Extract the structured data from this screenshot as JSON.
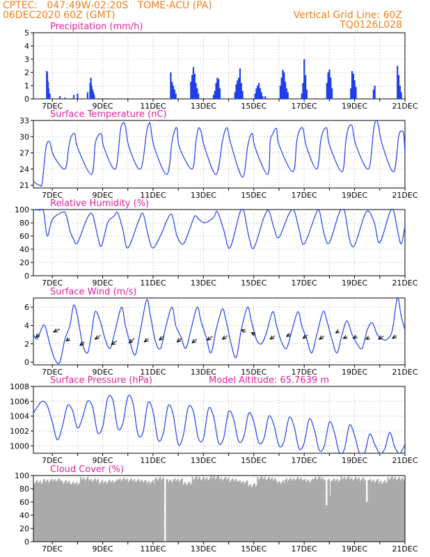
{
  "header": {
    "line1": "CPTEC:   047:49W-02:20S   TOME-ACU (PA)",
    "line2": "06DEC2020 60Z (GMT)",
    "right1": "Vertical Grid Line: 60Z",
    "right2": "TQ0126L028"
  },
  "colors": {
    "header": "#f07f1c",
    "title": "#e0219a",
    "series": "#1f3fe8",
    "cloud": "#aaaaaa",
    "arrow": "#000000"
  },
  "chart_data": [
    {
      "type": "bar",
      "title": "Precipitation (mm/h)",
      "ylim": [
        0,
        5
      ],
      "yticks": [
        "0",
        "1",
        "2",
        "3",
        "4",
        "5"
      ],
      "xticks": [
        "7DEC",
        "9DEC",
        "11DEC",
        "13DEC",
        "15DEC",
        "17DEC",
        "19DEC",
        "21DEC"
      ],
      "xrange_days": [
        6.25,
        21.0
      ],
      "x": [
        6.78,
        6.8,
        6.83,
        6.85,
        6.9,
        7.3,
        7.5,
        7.85,
        8.0,
        8.4,
        8.5,
        8.53,
        8.56,
        8.6,
        8.63,
        8.66,
        11.7,
        11.75,
        11.8,
        11.85,
        11.9,
        12.5,
        12.55,
        12.6,
        12.65,
        12.7,
        12.75,
        12.8,
        13.4,
        13.45,
        13.5,
        13.55,
        13.6,
        13.65,
        14.25,
        14.3,
        14.35,
        14.4,
        14.45,
        14.5,
        14.55,
        15.05,
        15.1,
        15.15,
        15.2,
        15.25,
        15.3,
        15.35,
        15.45,
        16.05,
        16.1,
        16.15,
        16.2,
        16.25,
        16.3,
        16.35,
        16.9,
        16.95,
        17.0,
        17.05,
        17.1,
        17.9,
        17.95,
        18.0,
        18.05,
        18.1,
        18.85,
        18.9,
        18.95,
        19.0,
        19.05,
        19.75,
        19.8,
        20.7,
        20.75,
        20.8,
        20.85
      ],
      "values": [
        2.1,
        2.0,
        1.3,
        0.8,
        0.4,
        0.2,
        0.1,
        0.3,
        0.4,
        0.5,
        1.2,
        1.6,
        1.0,
        0.7,
        0.5,
        0.3,
        2.0,
        1.3,
        1.0,
        0.7,
        0.4,
        1.3,
        1.8,
        2.4,
        1.9,
        1.2,
        0.8,
        0.4,
        0.3,
        0.6,
        1.2,
        1.6,
        1.5,
        0.8,
        0.5,
        1.1,
        1.4,
        1.6,
        2.3,
        1.2,
        0.6,
        0.4,
        0.8,
        1.0,
        1.2,
        0.8,
        0.5,
        0.2,
        0.2,
        1.0,
        1.6,
        2.2,
        2.0,
        1.3,
        0.8,
        0.5,
        0.4,
        1.2,
        3.0,
        1.8,
        0.7,
        1.2,
        2.0,
        2.2,
        1.6,
        0.8,
        0.8,
        2.1,
        1.9,
        1.4,
        0.9,
        0.7,
        1.0,
        2.5,
        1.8,
        1.0,
        0.5
      ]
    },
    {
      "type": "line",
      "title": "Surface Temperature (nC)",
      "ylim": [
        20.5,
        33
      ],
      "yticks": [
        "21",
        "24",
        "27",
        "30",
        "33"
      ],
      "xticks": [
        "7DEC",
        "9DEC",
        "11DEC",
        "13DEC",
        "15DEC",
        "17DEC",
        "19DEC",
        "21DEC"
      ],
      "x": [
        6.25,
        6.5,
        6.6,
        6.75,
        6.9,
        7.05,
        7.5,
        7.65,
        7.75,
        7.9,
        8.0,
        8.55,
        8.7,
        8.8,
        8.95,
        9.05,
        9.5,
        9.7,
        9.8,
        9.9,
        10.05,
        10.5,
        10.75,
        10.85,
        10.9,
        11.05,
        11.55,
        11.75,
        11.85,
        11.95,
        12.05,
        12.55,
        12.7,
        12.8,
        12.9,
        13.05,
        13.5,
        13.75,
        13.85,
        13.95,
        14.1,
        14.55,
        14.75,
        14.85,
        14.95,
        15.05,
        15.55,
        15.65,
        15.75,
        15.9,
        16.0,
        16.55,
        16.7,
        16.8,
        16.95,
        17.1,
        17.5,
        17.65,
        17.75,
        17.9,
        18.0,
        18.5,
        18.65,
        18.75,
        18.9,
        19.05,
        19.55,
        19.75,
        19.85,
        19.95,
        20.1,
        20.55,
        20.75,
        20.85,
        20.95,
        21.0
      ],
      "values": [
        21.7,
        21.0,
        21.5,
        28.0,
        29.0,
        26.5,
        24.0,
        28.0,
        30.0,
        30.5,
        28.0,
        23.0,
        28.5,
        30.0,
        30.5,
        28.0,
        24.0,
        31.0,
        32.5,
        32.0,
        28.0,
        24.0,
        31.0,
        32.5,
        32.0,
        28.0,
        23.0,
        29.0,
        31.0,
        31.5,
        28.0,
        24.0,
        29.0,
        31.5,
        31.0,
        28.0,
        23.0,
        29.0,
        31.0,
        31.5,
        28.5,
        22.5,
        28.0,
        30.0,
        30.5,
        28.0,
        23.0,
        29.0,
        30.5,
        31.5,
        28.5,
        23.5,
        29.0,
        31.0,
        31.5,
        28.0,
        24.0,
        29.0,
        31.0,
        31.5,
        28.5,
        23.5,
        29.0,
        31.5,
        32.0,
        28.5,
        24.0,
        31.0,
        33.0,
        32.0,
        28.5,
        23.5,
        30.0,
        31.0,
        30.5,
        27.0
      ]
    },
    {
      "type": "line",
      "title": "Relative Humidity (%)",
      "ylim": [
        0,
        100
      ],
      "yticks": [
        "0",
        "20",
        "40",
        "60",
        "80",
        "100"
      ],
      "xticks": [
        "7DEC",
        "9DEC",
        "11DEC",
        "13DEC",
        "15DEC",
        "17DEC",
        "19DEC",
        "21DEC"
      ],
      "x": [
        6.25,
        6.5,
        6.65,
        6.8,
        7.0,
        7.4,
        7.55,
        7.7,
        7.85,
        8.0,
        8.4,
        8.6,
        8.8,
        8.95,
        9.2,
        9.45,
        9.6,
        9.8,
        10.0,
        10.4,
        10.6,
        10.8,
        11.0,
        11.35,
        11.55,
        11.75,
        11.95,
        12.2,
        12.45,
        12.65,
        12.8,
        13.05,
        13.4,
        13.55,
        13.8,
        14.05,
        14.45,
        14.6,
        14.8,
        15.0,
        15.4,
        15.6,
        15.8,
        16.0,
        16.4,
        16.6,
        16.8,
        17.0,
        17.45,
        17.6,
        17.8,
        18.0,
        18.4,
        18.6,
        18.8,
        19.0,
        19.4,
        19.6,
        19.8,
        20.0,
        20.4,
        20.55,
        20.7,
        20.85,
        21.0
      ],
      "values": [
        100,
        99,
        98,
        60,
        85,
        96,
        92,
        68,
        55,
        50,
        88,
        92,
        60,
        45,
        80,
        90,
        95,
        70,
        42,
        80,
        94,
        62,
        42,
        65,
        84,
        92,
        60,
        48,
        70,
        90,
        86,
        80,
        88,
        97,
        70,
        42,
        96,
        98,
        60,
        42,
        88,
        98,
        72,
        58,
        94,
        98,
        70,
        48,
        92,
        98,
        62,
        50,
        96,
        98,
        55,
        46,
        92,
        96,
        78,
        50,
        96,
        98,
        70,
        48,
        75
      ]
    },
    {
      "type": "line",
      "title": "Surface Wind (m/s)",
      "ylim": [
        -0.3,
        7
      ],
      "yticks": [
        "0",
        "2",
        "4",
        "6"
      ],
      "xticks": [
        "7DEC",
        "9DEC",
        "11DEC",
        "13DEC",
        "15DEC",
        "17DEC",
        "19DEC",
        "21DEC"
      ],
      "x": [
        6.25,
        6.4,
        6.55,
        6.7,
        6.9,
        7.1,
        7.3,
        7.5,
        7.7,
        7.85,
        8.0,
        8.2,
        8.4,
        8.55,
        8.7,
        8.9,
        9.1,
        9.3,
        9.5,
        9.75,
        9.9,
        10.1,
        10.3,
        10.5,
        10.75,
        10.9,
        11.1,
        11.3,
        11.5,
        11.75,
        11.9,
        12.1,
        12.3,
        12.5,
        12.75,
        12.9,
        13.1,
        13.3,
        13.5,
        13.75,
        13.9,
        14.1,
        14.3,
        14.5,
        14.75,
        14.9,
        15.1,
        15.3,
        15.5,
        15.75,
        15.9,
        16.1,
        16.3,
        16.5,
        16.75,
        16.9,
        17.1,
        17.3,
        17.5,
        17.75,
        17.9,
        18.1,
        18.3,
        18.5,
        18.7,
        18.9,
        19.1,
        19.3,
        19.5,
        19.7,
        19.9,
        20.1,
        20.3,
        20.5,
        20.7,
        20.85,
        21.0
      ],
      "values": [
        3.0,
        2.5,
        3.5,
        4.0,
        2.0,
        0.3,
        0.0,
        2.5,
        4.0,
        6.2,
        5.0,
        2.0,
        1.0,
        3.0,
        5.5,
        4.5,
        2.5,
        1.5,
        3.5,
        6.0,
        4.0,
        2.0,
        0.8,
        3.5,
        6.8,
        5.0,
        2.2,
        1.5,
        3.8,
        6.0,
        4.0,
        2.8,
        1.5,
        3.5,
        6.0,
        4.5,
        2.8,
        1.0,
        3.5,
        5.8,
        4.5,
        2.0,
        0.5,
        3.5,
        6.0,
        4.5,
        2.5,
        2.0,
        3.2,
        5.5,
        4.0,
        2.2,
        1.5,
        3.3,
        5.5,
        4.0,
        2.5,
        1.0,
        3.0,
        5.5,
        4.5,
        2.5,
        1.0,
        3.0,
        4.5,
        3.0,
        2.0,
        1.5,
        3.5,
        4.3,
        3.0,
        2.5,
        2.5,
        3.5,
        7.0,
        5.0,
        3.5
      ],
      "arrows": [
        {
          "x": 6.35,
          "y": 2.7,
          "dx": 0.35,
          "dy": 1.0
        },
        {
          "x": 7.05,
          "y": 3.3,
          "dx": 0.7,
          "dy": 0.9
        },
        {
          "x": 7.55,
          "y": 2.3,
          "dx": 0.4,
          "dy": 0.8
        },
        {
          "x": 8.1,
          "y": 1.8,
          "dx": 0.5,
          "dy": 1.2
        },
        {
          "x": 8.7,
          "y": 2.5,
          "dx": 0.6,
          "dy": 1.2
        },
        {
          "x": 9.35,
          "y": 1.9,
          "dx": 0.6,
          "dy": 1.2
        },
        {
          "x": 10.05,
          "y": 2.1,
          "dx": 0.6,
          "dy": 1.4
        },
        {
          "x": 10.65,
          "y": 2.2,
          "dx": 0.5,
          "dy": 1.1
        },
        {
          "x": 11.25,
          "y": 2.4,
          "dx": 0.55,
          "dy": 1.3
        },
        {
          "x": 11.95,
          "y": 2.2,
          "dx": 0.5,
          "dy": 1.1
        },
        {
          "x": 12.55,
          "y": 2.1,
          "dx": 0.55,
          "dy": 1.2
        },
        {
          "x": 13.15,
          "y": 2.4,
          "dx": 0.6,
          "dy": 1.2
        },
        {
          "x": 13.75,
          "y": 2.5,
          "dx": 0.6,
          "dy": 1.1
        },
        {
          "x": 14.5,
          "y": 3.5,
          "dx": 0.55,
          "dy": -0.5
        },
        {
          "x": 14.9,
          "y": 3.2,
          "dx": 0.5,
          "dy": -0.6
        },
        {
          "x": 15.65,
          "y": 2.5,
          "dx": 0.55,
          "dy": 1.1
        },
        {
          "x": 16.3,
          "y": 2.8,
          "dx": 0.5,
          "dy": 0.8
        },
        {
          "x": 16.95,
          "y": 2.6,
          "dx": 0.55,
          "dy": 1.0
        },
        {
          "x": 17.6,
          "y": 2.5,
          "dx": 0.55,
          "dy": 1.0
        },
        {
          "x": 18.25,
          "y": 3.2,
          "dx": 0.35,
          "dy": 0.5
        },
        {
          "x": 18.55,
          "y": 2.6,
          "dx": 0.45,
          "dy": 0.5
        },
        {
          "x": 18.95,
          "y": 2.6,
          "dx": 0.4,
          "dy": 0.6
        },
        {
          "x": 19.45,
          "y": 2.5,
          "dx": 0.35,
          "dy": 0.5
        },
        {
          "x": 19.95,
          "y": 2.5,
          "dx": 0.55,
          "dy": 1.0
        },
        {
          "x": 20.5,
          "y": 2.6,
          "dx": 0.5,
          "dy": 0.8
        }
      ]
    },
    {
      "type": "line",
      "title": "Surface Pressure (hPa)",
      "annotation": "Model Altitude: 65.7639 m",
      "ylim": [
        999,
        1008
      ],
      "yticks": [
        "1000",
        "1002",
        "1004",
        "1006",
        "1008"
      ],
      "xticks": [
        "7DEC",
        "9DEC",
        "11DEC",
        "13DEC",
        "15DEC",
        "17DEC",
        "19DEC",
        "21DEC"
      ],
      "x": [
        6.25,
        6.4,
        6.6,
        6.8,
        7.0,
        7.2,
        7.4,
        7.6,
        7.8,
        8.0,
        8.2,
        8.4,
        8.6,
        8.8,
        9.0,
        9.2,
        9.4,
        9.6,
        9.8,
        10.0,
        10.2,
        10.4,
        10.6,
        10.8,
        11.0,
        11.2,
        11.4,
        11.6,
        11.8,
        12.0,
        12.2,
        12.4,
        12.6,
        12.8,
        13.0,
        13.2,
        13.4,
        13.6,
        13.8,
        14.0,
        14.2,
        14.4,
        14.6,
        14.8,
        15.0,
        15.2,
        15.4,
        15.6,
        15.8,
        16.0,
        16.2,
        16.4,
        16.6,
        16.8,
        17.0,
        17.2,
        17.4,
        17.6,
        17.8,
        18.0,
        18.2,
        18.4,
        18.6,
        18.8,
        19.0,
        19.2,
        19.4,
        19.6,
        19.8,
        20.0,
        20.2,
        20.4,
        20.6,
        20.8,
        21.0
      ],
      "values": [
        1004.4,
        1005.2,
        1006.0,
        1005.4,
        1003.2,
        1000.8,
        1002.6,
        1005.4,
        1004.8,
        1002.4,
        1003.8,
        1006.0,
        1005.2,
        1001.8,
        1002.6,
        1006.4,
        1006.2,
        1002.4,
        1003.0,
        1006.6,
        1005.8,
        1001.6,
        1001.8,
        1005.8,
        1004.6,
        1000.8,
        1001.6,
        1005.4,
        1004.2,
        1000.2,
        1001.4,
        1005.2,
        1004.6,
        1001.0,
        1001.0,
        1005.0,
        1004.0,
        1000.4,
        1001.0,
        1004.6,
        1003.6,
        1000.6,
        1001.2,
        1004.4,
        1003.2,
        1000.4,
        1001.0,
        1004.0,
        1002.8,
        1000.0,
        1000.6,
        1003.8,
        1002.6,
        999.6,
        1000.4,
        1003.6,
        1002.2,
        999.4,
        1000.0,
        1003.2,
        1001.8,
        998.8,
        999.6,
        1002.8,
        1001.4,
        998.6,
        998.4,
        1001.6,
        1000.2,
        997.8,
        999.6,
        1001.8,
        999.8,
        998.0,
        1000.2
      ]
    },
    {
      "type": "bar",
      "title": "Cloud Cover (%)",
      "ylim": [
        0,
        100
      ],
      "yticks": [
        "0",
        "20",
        "40",
        "60",
        "80",
        "100"
      ],
      "xticks": [
        "7DEC",
        "9DEC",
        "11DEC",
        "13DEC",
        "15DEC",
        "17DEC",
        "19DEC",
        "21DEC"
      ],
      "mean_values_by_segment": [
        90,
        92,
        93,
        90,
        88,
        95,
        93,
        90,
        91,
        94,
        93,
        92,
        90,
        95,
        92,
        93,
        88,
        96,
        95,
        97,
        95,
        93,
        90,
        85,
        96,
        95,
        90,
        94,
        95,
        92,
        96,
        95,
        93,
        96,
        95,
        94,
        92,
        90,
        96,
        95
      ],
      "dips": [
        {
          "x": 11.45,
          "value": 0
        },
        {
          "x": 17.85,
          "value": 55
        },
        {
          "x": 18.0,
          "value": 70
        },
        {
          "x": 19.45,
          "value": 60
        }
      ]
    }
  ]
}
